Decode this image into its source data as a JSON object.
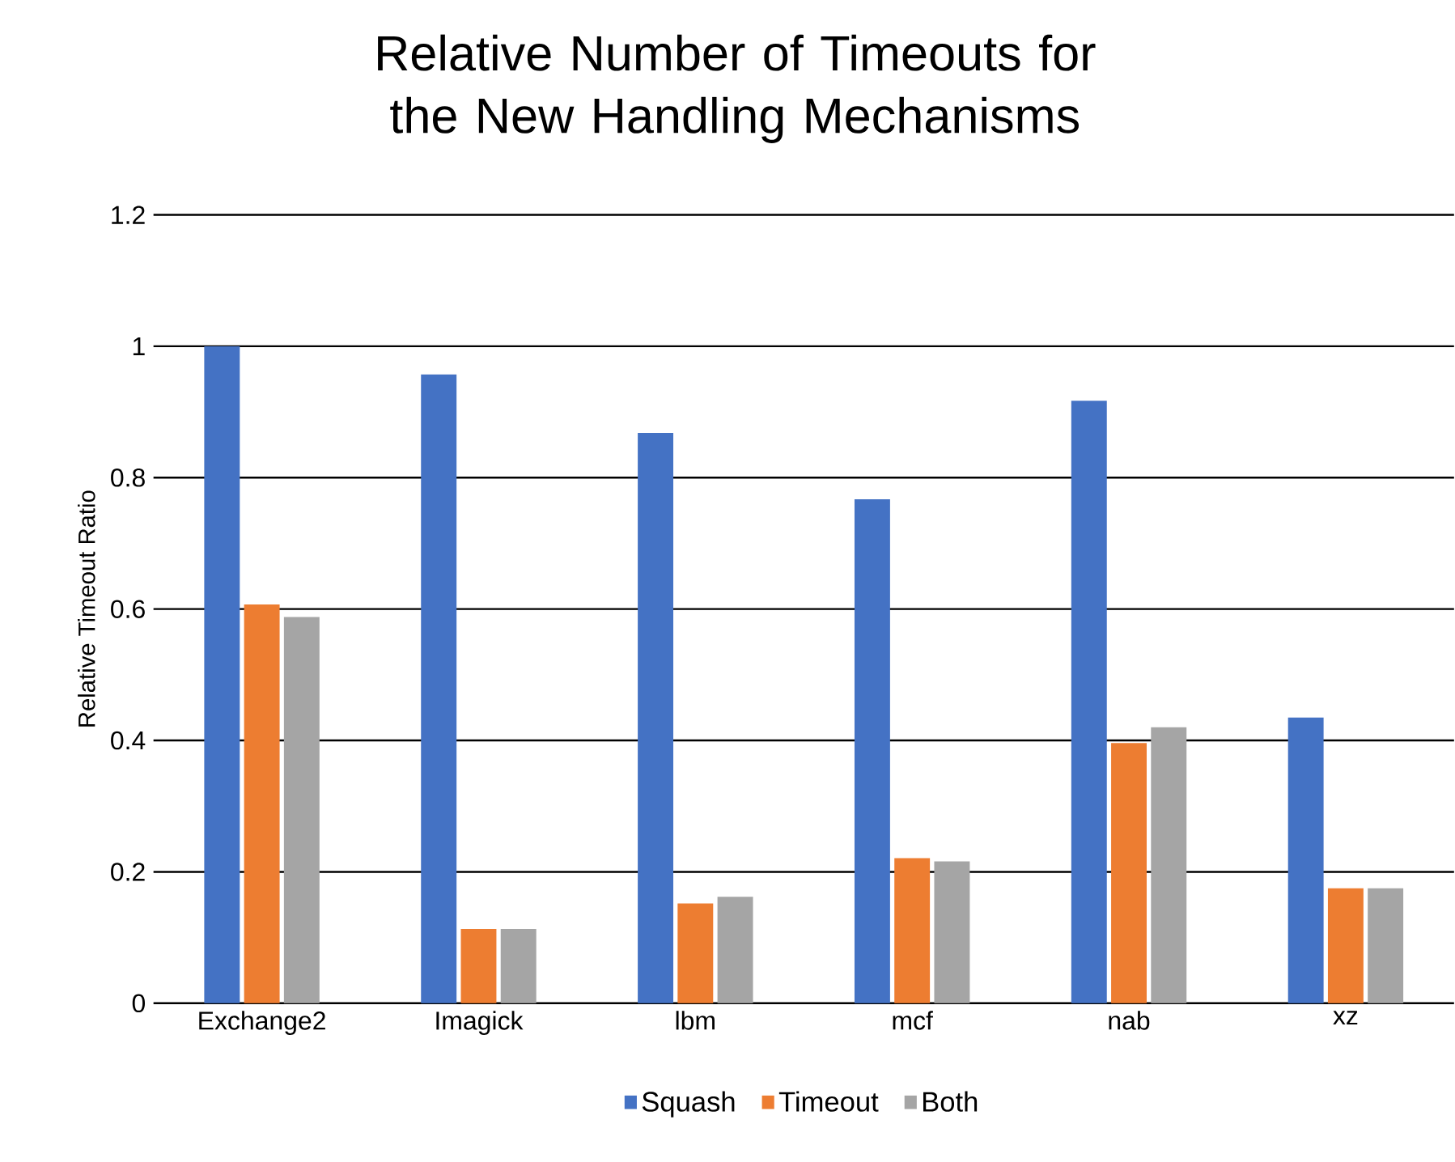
{
  "chart_data": {
    "type": "bar",
    "title": "Relative Number of Timeouts for the New Handling Mechanisms",
    "ylabel": "Relative Timeout Ratio",
    "categories": [
      "Exchange2",
      "Imagick",
      "lbm",
      "mcf",
      "nab",
      "xz"
    ],
    "series": [
      {
        "name": "Squash",
        "color": "#4472c4",
        "values": [
          1.0,
          0.957,
          0.868,
          0.767,
          0.917,
          0.435
        ]
      },
      {
        "name": "Timeout",
        "color": "#ed7d31",
        "values": [
          0.607,
          0.113,
          0.152,
          0.221,
          0.396,
          0.175
        ]
      },
      {
        "name": "Both",
        "color": "#a5a5a5",
        "values": [
          0.588,
          0.113,
          0.162,
          0.216,
          0.42,
          0.175
        ]
      }
    ],
    "ylim": [
      0,
      1.2
    ],
    "yticks": [
      0,
      0.2,
      0.4,
      0.6,
      0.8,
      1,
      1.2
    ],
    "grid": "y",
    "legend": "bottom"
  }
}
